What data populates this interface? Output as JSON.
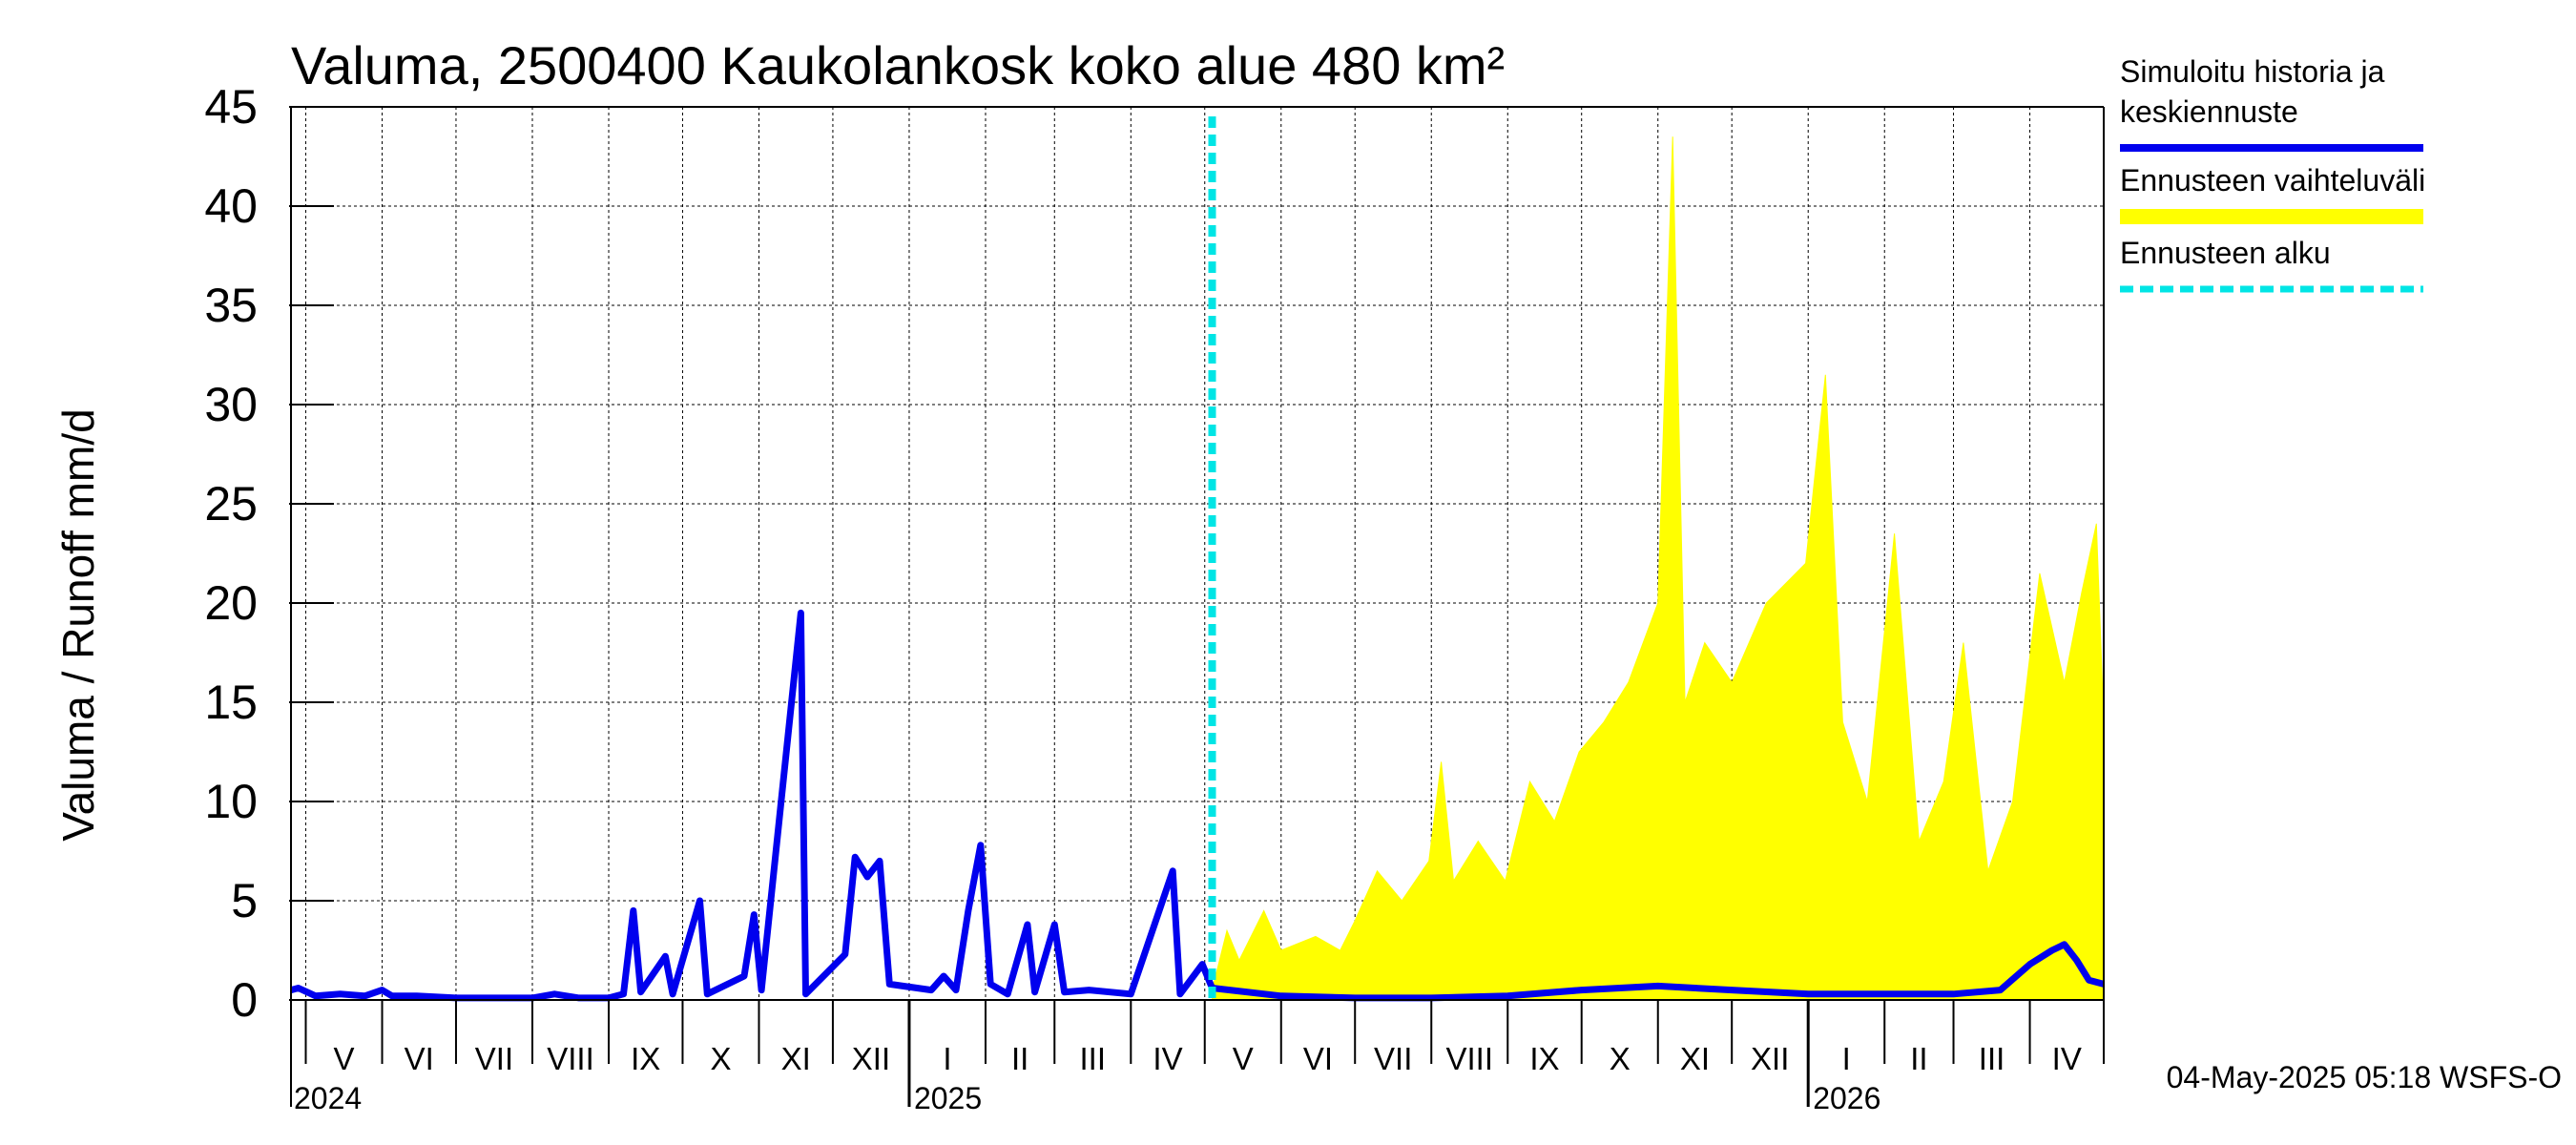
{
  "chart_data": {
    "type": "area",
    "title": "Valuma, 2500400 Kaukolankosk koko alue 480 km²",
    "ylabel": "Valuma / Runoff     mm/d",
    "ylim": [
      0,
      45
    ],
    "yticks": [
      0,
      5,
      10,
      15,
      20,
      25,
      30,
      35,
      40,
      45
    ],
    "grid": true,
    "x_range": [
      "2024-04-25",
      "2026-05-01"
    ],
    "forecast_start": "2025-05-04",
    "months": [
      {
        "label": "V",
        "start": "2024-05-01"
      },
      {
        "label": "VI",
        "start": "2024-06-01"
      },
      {
        "label": "VII",
        "start": "2024-07-01"
      },
      {
        "label": "VIII",
        "start": "2024-08-01"
      },
      {
        "label": "IX",
        "start": "2024-09-01"
      },
      {
        "label": "X",
        "start": "2024-10-01"
      },
      {
        "label": "XI",
        "start": "2024-11-01"
      },
      {
        "label": "XII",
        "start": "2024-12-01"
      },
      {
        "label": "I",
        "start": "2025-01-01"
      },
      {
        "label": "II",
        "start": "2025-02-01"
      },
      {
        "label": "III",
        "start": "2025-03-01"
      },
      {
        "label": "IV",
        "start": "2025-04-01"
      },
      {
        "label": "V",
        "start": "2025-05-01"
      },
      {
        "label": "VI",
        "start": "2025-06-01"
      },
      {
        "label": "VII",
        "start": "2025-07-01"
      },
      {
        "label": "VIII",
        "start": "2025-08-01"
      },
      {
        "label": "IX",
        "start": "2025-09-01"
      },
      {
        "label": "X",
        "start": "2025-10-01"
      },
      {
        "label": "XI",
        "start": "2025-11-01"
      },
      {
        "label": "XII",
        "start": "2025-12-01"
      },
      {
        "label": "I",
        "start": "2026-01-01"
      },
      {
        "label": "II",
        "start": "2026-02-01"
      },
      {
        "label": "III",
        "start": "2026-03-01"
      },
      {
        "label": "IV",
        "start": "2026-04-01"
      }
    ],
    "years": [
      {
        "label": "2024",
        "date": "2024-04-25"
      },
      {
        "label": "2025",
        "date": "2025-01-01"
      },
      {
        "label": "2026",
        "date": "2026-01-01"
      }
    ],
    "legend": [
      {
        "label": "Simuloitu historia ja keskiennuste",
        "lines": [
          "Simuloitu historia ja",
          "keskiennuste"
        ],
        "color": "#0000ee",
        "style": "solid"
      },
      {
        "label": "Ennusteen vaihteluväli",
        "lines": [
          "Ennusteen vaihteluväli"
        ],
        "color": "#ffff00",
        "style": "band"
      },
      {
        "label": "Ennusteen alku",
        "lines": [
          "Ennusteen alku"
        ],
        "color": "#00e5e5",
        "style": "dashed"
      }
    ],
    "legend_placement": "right",
    "series": [
      {
        "name": "Simuloitu historia ja keskiennuste",
        "color": "#0000ee",
        "points": [
          [
            "2024-04-25",
            0.5
          ],
          [
            "2024-04-28",
            0.6
          ],
          [
            "2024-05-05",
            0.2
          ],
          [
            "2024-05-15",
            0.3
          ],
          [
            "2024-05-25",
            0.2
          ],
          [
            "2024-06-01",
            0.5
          ],
          [
            "2024-06-05",
            0.2
          ],
          [
            "2024-06-15",
            0.2
          ],
          [
            "2024-07-01",
            0.1
          ],
          [
            "2024-08-01",
            0.1
          ],
          [
            "2024-08-10",
            0.3
          ],
          [
            "2024-08-20",
            0.1
          ],
          [
            "2024-09-01",
            0.1
          ],
          [
            "2024-09-07",
            0.3
          ],
          [
            "2024-09-11",
            4.5
          ],
          [
            "2024-09-14",
            0.4
          ],
          [
            "2024-09-24",
            2.2
          ],
          [
            "2024-09-27",
            0.3
          ],
          [
            "2024-10-08",
            5.0
          ],
          [
            "2024-10-11",
            0.3
          ],
          [
            "2024-10-26",
            1.2
          ],
          [
            "2024-10-30",
            4.3
          ],
          [
            "2024-11-02",
            0.5
          ],
          [
            "2024-11-18",
            19.5
          ],
          [
            "2024-11-20",
            0.3
          ],
          [
            "2024-12-06",
            2.3
          ],
          [
            "2024-12-10",
            7.2
          ],
          [
            "2024-12-15",
            6.2
          ],
          [
            "2024-12-20",
            7.0
          ],
          [
            "2024-12-24",
            0.8
          ],
          [
            "2025-01-10",
            0.5
          ],
          [
            "2025-01-15",
            1.2
          ],
          [
            "2025-01-20",
            0.5
          ],
          [
            "2025-01-25",
            4.5
          ],
          [
            "2025-01-30",
            7.8
          ],
          [
            "2025-02-03",
            0.8
          ],
          [
            "2025-02-10",
            0.3
          ],
          [
            "2025-02-18",
            3.8
          ],
          [
            "2025-02-21",
            0.4
          ],
          [
            "2025-03-01",
            3.8
          ],
          [
            "2025-03-05",
            0.4
          ],
          [
            "2025-03-15",
            0.5
          ],
          [
            "2025-04-01",
            0.3
          ],
          [
            "2025-04-18",
            6.5
          ],
          [
            "2025-04-21",
            0.3
          ],
          [
            "2025-04-30",
            1.8
          ],
          [
            "2025-05-04",
            0.6
          ],
          [
            "2025-06-01",
            0.2
          ],
          [
            "2025-07-01",
            0.1
          ],
          [
            "2025-08-01",
            0.1
          ],
          [
            "2025-09-01",
            0.2
          ],
          [
            "2025-10-01",
            0.5
          ],
          [
            "2025-11-01",
            0.7
          ],
          [
            "2025-12-01",
            0.5
          ],
          [
            "2026-01-01",
            0.3
          ],
          [
            "2026-02-01",
            0.3
          ],
          [
            "2026-03-01",
            0.3
          ],
          [
            "2026-03-20",
            0.5
          ],
          [
            "2026-04-01",
            1.8
          ],
          [
            "2026-04-10",
            2.5
          ],
          [
            "2026-04-15",
            2.8
          ],
          [
            "2026-04-20",
            2.0
          ],
          [
            "2026-04-25",
            1.0
          ],
          [
            "2026-05-01",
            0.8
          ]
        ]
      },
      {
        "name": "Ennusteen vaihteluväli",
        "color": "#ffff00",
        "upper": [
          [
            "2025-05-04",
            0.5
          ],
          [
            "2025-05-10",
            3.5
          ],
          [
            "2025-05-15",
            2.0
          ],
          [
            "2025-05-25",
            4.5
          ],
          [
            "2025-06-01",
            2.5
          ],
          [
            "2025-06-15",
            3.2
          ],
          [
            "2025-06-25",
            2.5
          ],
          [
            "2025-07-01",
            4.0
          ],
          [
            "2025-07-10",
            6.5
          ],
          [
            "2025-07-20",
            5.0
          ],
          [
            "2025-07-31",
            7.0
          ],
          [
            "2025-08-05",
            12.0
          ],
          [
            "2025-08-10",
            6.0
          ],
          [
            "2025-08-20",
            8.0
          ],
          [
            "2025-08-31",
            6.0
          ],
          [
            "2025-09-10",
            11.0
          ],
          [
            "2025-09-20",
            9.0
          ],
          [
            "2025-09-30",
            12.5
          ],
          [
            "2025-10-10",
            14.0
          ],
          [
            "2025-10-20",
            16.0
          ],
          [
            "2025-11-01",
            20.0
          ],
          [
            "2025-11-07",
            43.5
          ],
          [
            "2025-11-12",
            15.0
          ],
          [
            "2025-11-20",
            18.0
          ],
          [
            "2025-12-01",
            16.0
          ],
          [
            "2025-12-15",
            20.0
          ],
          [
            "2025-12-31",
            22.0
          ],
          [
            "2026-01-08",
            31.5
          ],
          [
            "2026-01-15",
            14.0
          ],
          [
            "2026-01-25",
            10.0
          ],
          [
            "2026-02-05",
            23.5
          ],
          [
            "2026-02-15",
            8.0
          ],
          [
            "2026-02-25",
            11.0
          ],
          [
            "2026-03-05",
            18.0
          ],
          [
            "2026-03-15",
            6.5
          ],
          [
            "2026-03-25",
            10.0
          ],
          [
            "2026-04-05",
            21.5
          ],
          [
            "2026-04-15",
            16.0
          ],
          [
            "2026-04-22",
            20.5
          ],
          [
            "2026-04-28",
            24.0
          ],
          [
            "2026-05-01",
            14.0
          ]
        ],
        "lower": [
          [
            "2025-05-04",
            0.0
          ],
          [
            "2026-05-01",
            0.0
          ]
        ]
      }
    ],
    "footer": "04-May-2025 05:18 WSFS-O"
  }
}
